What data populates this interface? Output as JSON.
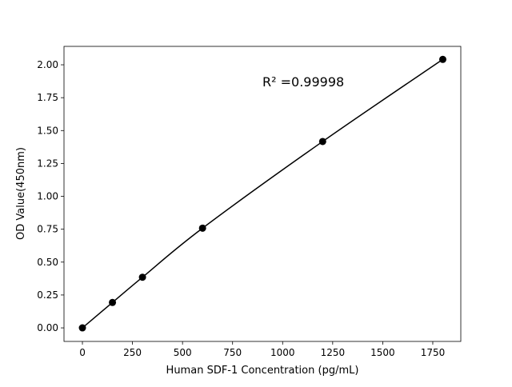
{
  "chart_data": {
    "type": "line",
    "title": "",
    "xlabel": "Human SDF-1 Concentration (pg/mL)",
    "ylabel": "OD Value(450nm)",
    "xlim": [
      -92,
      1890
    ],
    "ylim": [
      -0.103,
      2.14
    ],
    "xticks": [
      0,
      250,
      500,
      750,
      1000,
      1250,
      1500,
      1750
    ],
    "yticks": [
      "0.00",
      "0.25",
      "0.50",
      "0.75",
      "1.00",
      "1.25",
      "1.50",
      "1.75",
      "2.00"
    ],
    "grid": false,
    "series": [
      {
        "x": [
          0,
          150,
          300,
          600,
          1200,
          1800
        ],
        "y": [
          0.0,
          0.193,
          0.385,
          0.758,
          1.417,
          2.041
        ],
        "color": "#000000",
        "marker": "circle"
      }
    ],
    "annotation": "R² =0.99998"
  }
}
